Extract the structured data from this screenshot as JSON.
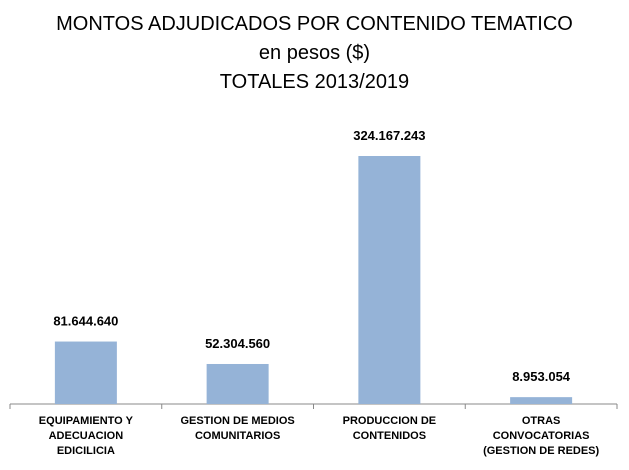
{
  "chart_data": {
    "type": "bar",
    "title": "MONTOS ADJUDICADOS POR CONTENIDO TEMATICO\nen pesos ($)\nTOTALES 2013/2019",
    "categories": [
      "EQUIPAMIENTO Y\nADECUACION\nEDICILICIA",
      "GESTION DE MEDIOS\nCOMUNITARIOS",
      "PRODUCCION DE\nCONTENIDOS",
      "OTRAS\nCONVOCATORIAS\n(GESTION DE REDES)"
    ],
    "values": [
      81644640,
      52304560,
      324167243,
      8953054
    ],
    "value_labels": [
      "81.644.640",
      "52.304.560",
      "324.167.243",
      "8.953.054"
    ],
    "color": "#95b3d7"
  }
}
